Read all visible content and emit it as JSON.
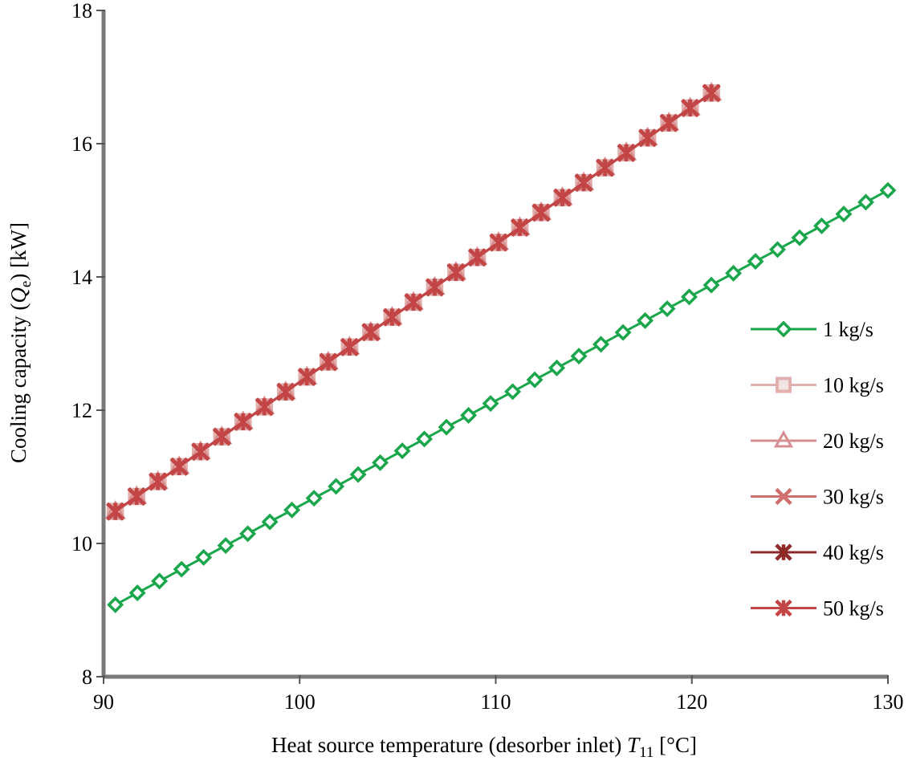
{
  "chart_data": {
    "type": "line",
    "xlabel": "Heat source temperature (desorber inlet)",
    "xlabel_symbol": "T",
    "xlabel_subscript": "11",
    "xlabel_unit": "[°C]",
    "ylabel": "Cooling capacity (",
    "ylabel_symbol": "Q",
    "ylabel_subscript": "e",
    "ylabel_unit": ") [kW]",
    "xlim": [
      90,
      130
    ],
    "ylim": [
      8,
      18
    ],
    "xticks": [
      "90",
      "100",
      "110",
      "120",
      "130"
    ],
    "yticks": [
      "8",
      "10",
      "12",
      "14",
      "16",
      "18"
    ],
    "legend_position": "right",
    "series": [
      {
        "name": "1 kg/s",
        "color": "#1aa64a",
        "marker": "diamond",
        "x_start": 90.6,
        "x_end": 130,
        "y_start": 9.08,
        "y_end": 15.3,
        "points": 36
      },
      {
        "name": "10 kg/s",
        "color": "#e3b0b0",
        "marker": "square",
        "x_start": 90.6,
        "x_end": 121,
        "y_start": 10.48,
        "y_end": 16.76,
        "points": 29
      },
      {
        "name": "20 kg/s",
        "color": "#d88e8e",
        "marker": "triangle",
        "x_start": 90.6,
        "x_end": 121,
        "y_start": 10.48,
        "y_end": 16.76,
        "points": 29
      },
      {
        "name": "30 kg/s",
        "color": "#cf6f6f",
        "marker": "x",
        "x_start": 90.6,
        "x_end": 121,
        "y_start": 10.48,
        "y_end": 16.76,
        "points": 29
      },
      {
        "name": "40 kg/s",
        "color": "#8e2a2a",
        "marker": "xbar",
        "x_start": 90.6,
        "x_end": 121,
        "y_start": 10.48,
        "y_end": 16.76,
        "points": 29
      },
      {
        "name": "50 kg/s",
        "color": "#c44545",
        "marker": "xbar",
        "x_start": 90.6,
        "x_end": 121,
        "y_start": 10.48,
        "y_end": 16.76,
        "points": 29
      }
    ]
  }
}
